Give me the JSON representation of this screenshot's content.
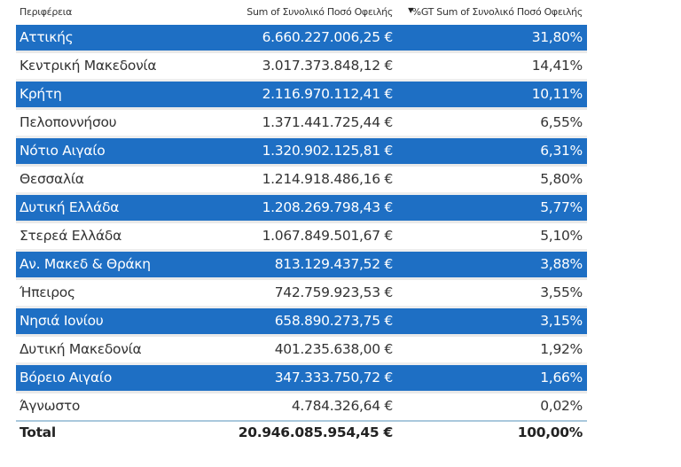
{
  "headers": {
    "region": "Περιφέρεια",
    "sum": "Sum of Συνολικό Ποσό Οφειλής",
    "pct": "%GT Sum of Συνολικό Ποσό Οφειλής"
  },
  "rows": [
    {
      "region": "Αττικής",
      "sum": "6.660.227.006,25 €",
      "pct": "31,80%"
    },
    {
      "region": "Κεντρική Μακεδονία",
      "sum": "3.017.373.848,12 €",
      "pct": "14,41%"
    },
    {
      "region": "Κρήτη",
      "sum": "2.116.970.112,41 €",
      "pct": "10,11%"
    },
    {
      "region": "Πελοποννήσου",
      "sum": "1.371.441.725,44 €",
      "pct": "6,55%"
    },
    {
      "region": "Νότιο Αιγαίο",
      "sum": "1.320.902.125,81 €",
      "pct": "6,31%"
    },
    {
      "region": "Θεσσαλία",
      "sum": "1.214.918.486,16 €",
      "pct": "5,80%"
    },
    {
      "region": "Δυτική Ελλάδα",
      "sum": "1.208.269.798,43 €",
      "pct": "5,77%"
    },
    {
      "region": "Στερεά Ελλάδα",
      "sum": "1.067.849.501,67 €",
      "pct": "5,10%"
    },
    {
      "region": "Αν. Μακεδ & Θράκη",
      "sum": "813.129.437,52 €",
      "pct": "3,88%"
    },
    {
      "region": "Ήπειρος",
      "sum": "742.759.923,53 €",
      "pct": "3,55%"
    },
    {
      "region": "Νησιά Ιονίου",
      "sum": "658.890.273,75 €",
      "pct": "3,15%"
    },
    {
      "region": "Δυτική Μακεδονία",
      "sum": "401.235.638,00 €",
      "pct": "1,92%"
    },
    {
      "region": "Βόρειο Αιγαίο",
      "sum": "347.333.750,72 €",
      "pct": "1,66%"
    },
    {
      "region": "Άγνωστο",
      "sum": "4.784.326,64 €",
      "pct": "0,02%"
    }
  ],
  "total": {
    "label": "Total",
    "sum": "20.946.085.954,45 €",
    "pct": "100,00%"
  },
  "colors": {
    "band": "#1e6fc4"
  }
}
